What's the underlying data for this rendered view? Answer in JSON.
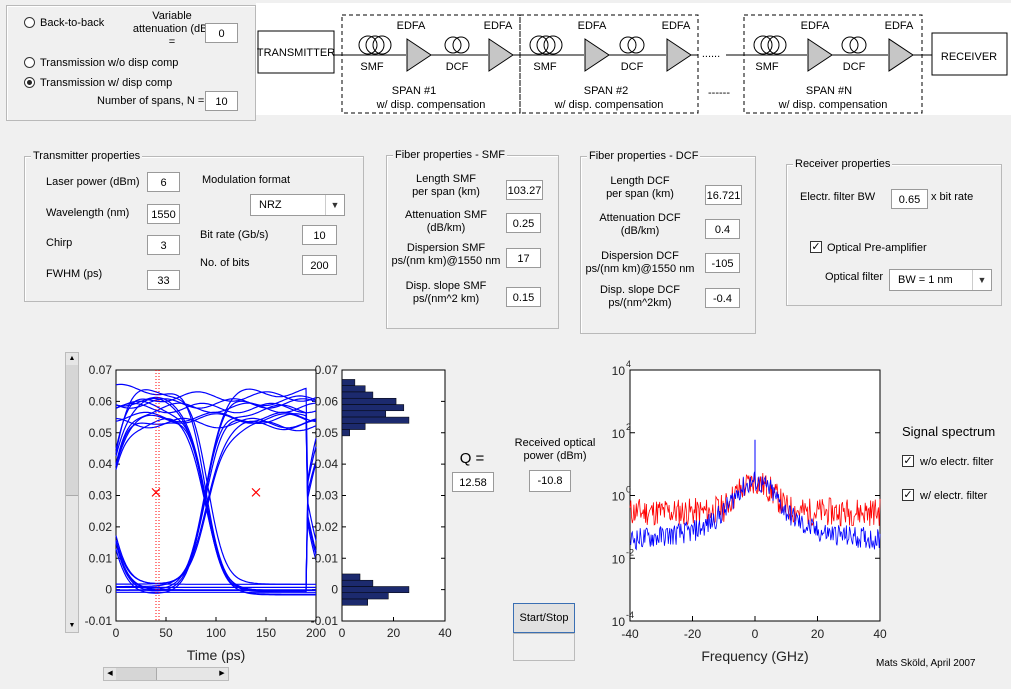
{
  "mode": {
    "back_to_back": "Back-to-back",
    "var_atten_label": "Variable attenuation (dB) =",
    "var_atten_value": "0",
    "wo_disp": "Transmission w/o disp comp",
    "w_disp": "Transmission w/ disp comp",
    "num_spans_label": "Number of spans, N =",
    "num_spans_value": "10",
    "selected": "Transmission w/ disp comp"
  },
  "diagram": {
    "transmitter": "TRANSMITTER",
    "receiver": "RECEIVER",
    "edfa": "EDFA",
    "smf": "SMF",
    "dcf": "DCF",
    "span1": "SPAN #1",
    "span2": "SPAN #2",
    "spanN": "SPAN #N",
    "wdisp": "w/ disp. compensation",
    "dots_top": "......",
    "dots_mid": "------"
  },
  "transmitter": {
    "title": "Transmitter properties",
    "laser_power_label": "Laser power (dBm)",
    "laser_power": "6",
    "wavelength_label": "Wavelength (nm)",
    "wavelength": "1550",
    "chirp_label": "Chirp",
    "chirp": "3",
    "fwhm_label": "FWHM (ps)",
    "fwhm": "33",
    "modulation_label": "Modulation format",
    "modulation": "NRZ",
    "bitrate_label": "Bit rate (Gb/s)",
    "bitrate": "10",
    "nbits_label": "No. of bits",
    "nbits": "200"
  },
  "smf": {
    "title": "Fiber properties - SMF",
    "length_label_1": "Length SMF",
    "length_label_2": "per span (km)",
    "length": "103.27",
    "atten_label_1": "Attenuation SMF",
    "atten_label_2": "(dB/km)",
    "atten": "0.25",
    "disp_label_1": "Dispersion SMF",
    "disp_label_2": "ps/(nm km)@1550 nm",
    "disp": "17",
    "slope_label_1": "Disp. slope SMF",
    "slope_label_2": "ps/(nm^2 km)",
    "slope": "0.15"
  },
  "dcf": {
    "title": "Fiber properties - DCF",
    "length_label_1": "Length DCF",
    "length_label_2": "per span (km)",
    "length": "16.721",
    "atten_label_1": "Attenuation DCF",
    "atten_label_2": "(dB/km)",
    "atten": "0.4",
    "disp_label_1": "Dispersion DCF",
    "disp_label_2": "ps/(nm km)@1550 nm",
    "disp": "-105",
    "slope_label_1": "Disp. slope DCF",
    "slope_label_2": "ps/(nm^2km)",
    "slope": "-0.4"
  },
  "receiver": {
    "title": "Receiver properties",
    "filter_bw_label": "Electr. filter BW",
    "filter_bw": "0.65",
    "filter_bw_unit": "x bit rate",
    "preamp_label": "Optical Pre-amplifier",
    "preamp_checked": true,
    "optical_filter_label": "Optical filter",
    "optical_filter": "BW = 1 nm"
  },
  "results": {
    "q_label": "Q =",
    "q_value": "12.58",
    "power_label_1": "Received optical",
    "power_label_2": "power (dBm)",
    "power_value": "-10.8",
    "start_stop": "Start/Stop",
    "credit": "Mats Sköld, April 2007"
  },
  "spectrum_legend": {
    "title": "Signal spectrum",
    "wo_filter": "w/o electr. filter",
    "w_filter": "w/ electr. filter",
    "wo_checked": true,
    "w_checked": true
  },
  "colors": {
    "eye": "#0000ff",
    "spectrum_wo": "#ff0000",
    "spectrum_w": "#0000ff",
    "histogram": "#1c2a6e",
    "marker": "#ff0000"
  },
  "chart_data": [
    {
      "type": "line",
      "name": "eye-diagram",
      "title": "",
      "xlabel": "Time (ps)",
      "ylabel": "",
      "xlim": [
        0,
        200
      ],
      "ylim": [
        -0.01,
        0.07
      ],
      "x_ticks": [
        "0",
        "50",
        "100",
        "150",
        "200"
      ],
      "y_ticks": [
        "-0.01",
        "0",
        "0.01",
        "0.02",
        "0.03",
        "0.04",
        "0.05",
        "0.06",
        "0.07"
      ],
      "sampling_time_ps": 40,
      "threshold_markers": [
        {
          "x": 40,
          "y": 0.031
        },
        {
          "x": 140,
          "y": 0.031
        }
      ],
      "high_level": 0.058,
      "low_level": 0.0,
      "crossing_times_ps": [
        0,
        90,
        190
      ],
      "crossing_level": 0.029
    },
    {
      "type": "bar",
      "name": "amplitude-histogram",
      "orientation": "horizontal",
      "xlim": [
        0,
        40
      ],
      "ylim": [
        -0.01,
        0.07
      ],
      "x_ticks": [
        "0",
        "20",
        "40"
      ],
      "y_ticks": [
        "-0.01",
        "0",
        "0.01",
        "0.02",
        "0.03",
        "0.04",
        "0.05",
        "0.06",
        "0.07"
      ],
      "levels": [
        0.066,
        0.064,
        0.062,
        0.06,
        0.058,
        0.056,
        0.054,
        0.052,
        0.05,
        0.004,
        0.002,
        0.0,
        -0.002,
        -0.004
      ],
      "counts": [
        5,
        9,
        12,
        21,
        24,
        17,
        26,
        9,
        3,
        7,
        12,
        26,
        18,
        10
      ]
    },
    {
      "type": "line",
      "name": "signal-spectrum",
      "title": "",
      "xlabel": "Frequency (GHz)",
      "ylabel": "",
      "yscale": "log",
      "xlim": [
        -40,
        40
      ],
      "ylim": [
        0.0001,
        10000
      ],
      "x_ticks": [
        "-40",
        "-20",
        "0",
        "20",
        "40"
      ],
      "y_ticks": [
        "10^-4",
        "10^-2",
        "10^0",
        "10^2",
        "10^4"
      ],
      "series": [
        {
          "name": "w/o electr. filter",
          "x": [
            -40,
            -20,
            -15,
            -10,
            -5,
            0,
            5,
            10,
            15,
            20,
            40
          ],
          "values": [
            0.3,
            0.3,
            0.3,
            0.4,
            1.5,
            3,
            1.5,
            0.4,
            0.3,
            0.3,
            0.3
          ]
        },
        {
          "name": "w/ electr. filter",
          "x": [
            -40,
            -30,
            -20,
            -15,
            -10,
            -5,
            0,
            5,
            10,
            15,
            20,
            30,
            40
          ],
          "values": [
            0.04,
            0.05,
            0.07,
            0.12,
            0.3,
            1.5,
            3,
            1.5,
            0.3,
            0.12,
            0.07,
            0.05,
            0.04
          ]
        }
      ],
      "peak": {
        "x": 0,
        "value": 60
      }
    }
  ]
}
